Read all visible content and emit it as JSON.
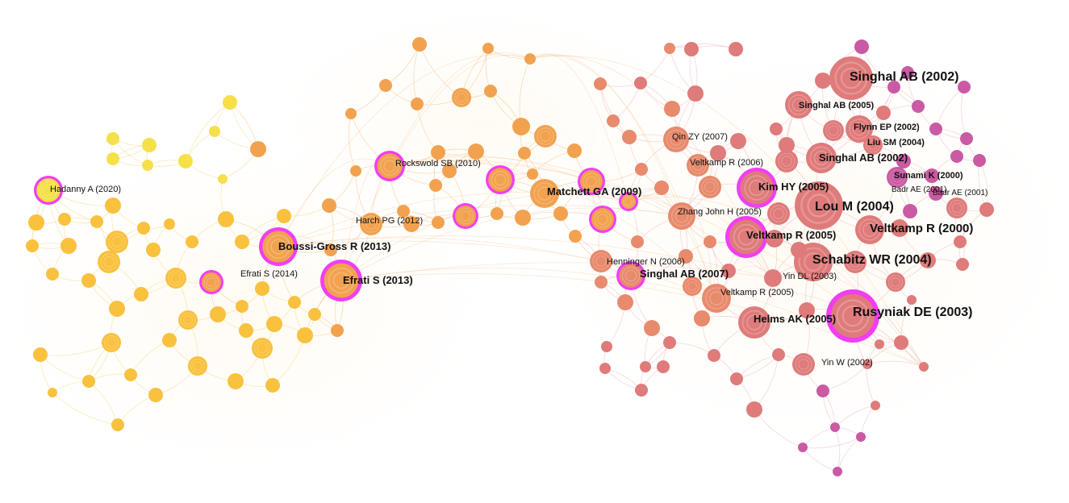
{
  "network": {
    "palette": {
      "yellow": "#f5e04a",
      "yellow_orange": "#f9c13e",
      "orange": "#f2a24f",
      "salmon": "#e88a6c",
      "coral": "#df7b7b",
      "magenta": "#c95aa3",
      "burst_ring": "#f13ef2",
      "edge_yellow": "#f6d77a",
      "edge_orange": "#f3bd86",
      "edge_pink": "#eeb2bd"
    },
    "labeled_nodes": [
      {
        "id": "hadanny-2020",
        "label": "Hadanny A (2020)"
      },
      {
        "id": "boussi-gross-2013",
        "label": "Boussi-Gross R (2013)"
      },
      {
        "id": "efrati-2014",
        "label": "Efrati S (2014)"
      },
      {
        "id": "efrati-2013",
        "label": "Efrati S (2013)"
      },
      {
        "id": "rockswold-2010",
        "label": "Rockswold SB (2010)"
      },
      {
        "id": "harch-2012",
        "label": "Harch PG (2012)"
      },
      {
        "id": "matchett-2009",
        "label": "Matchett GA (2009)"
      },
      {
        "id": "henninger-2006",
        "label": "Henninger N (2006)"
      },
      {
        "id": "singhal-2007",
        "label": "Singhal AB (2007)"
      },
      {
        "id": "qin-2007",
        "label": "Qin ZY (2007)"
      },
      {
        "id": "veltkamp-2006",
        "label": "Veltkamp R (2006)"
      },
      {
        "id": "zhang-2005",
        "label": "Zhang John H (2005)"
      },
      {
        "id": "kim-2005",
        "label": "Kim HY (2005)"
      },
      {
        "id": "veltkamp-2005a",
        "label": "Veltkamp R (2005)"
      },
      {
        "id": "veltkamp-2005b",
        "label": "Veltkamp R (2005)"
      },
      {
        "id": "yin-dl-2003",
        "label": "Yin DL (2003)"
      },
      {
        "id": "helms-2005",
        "label": "Helms AK (2005)"
      },
      {
        "id": "yin-w-2002",
        "label": "Yin W (2002)"
      },
      {
        "id": "singhal-2002a",
        "label": "Singhal AB (2002)"
      },
      {
        "id": "singhal-2005",
        "label": "Singhal AB (2005)"
      },
      {
        "id": "flynn-2002",
        "label": "Flynn EP (2002)"
      },
      {
        "id": "liu-2004",
        "label": "Liu SM (2004)"
      },
      {
        "id": "singhal-2002b",
        "label": "Singhal AB (2002)"
      },
      {
        "id": "sunami-2000",
        "label": "Sunami K (2000)"
      },
      {
        "id": "badr-2001a",
        "label": "Badr AE (2001)"
      },
      {
        "id": "badr-2001b",
        "label": "Badr AE (2001)"
      },
      {
        "id": "lou-2004",
        "label": "Lou M (2004)"
      },
      {
        "id": "veltkamp-2000",
        "label": "Veltkamp R (2000)"
      },
      {
        "id": "schabitz-2004",
        "label": "Schabitz WR (2004)"
      },
      {
        "id": "rusyniak-2003",
        "label": "Rusyniak DE (2003)"
      }
    ]
  }
}
